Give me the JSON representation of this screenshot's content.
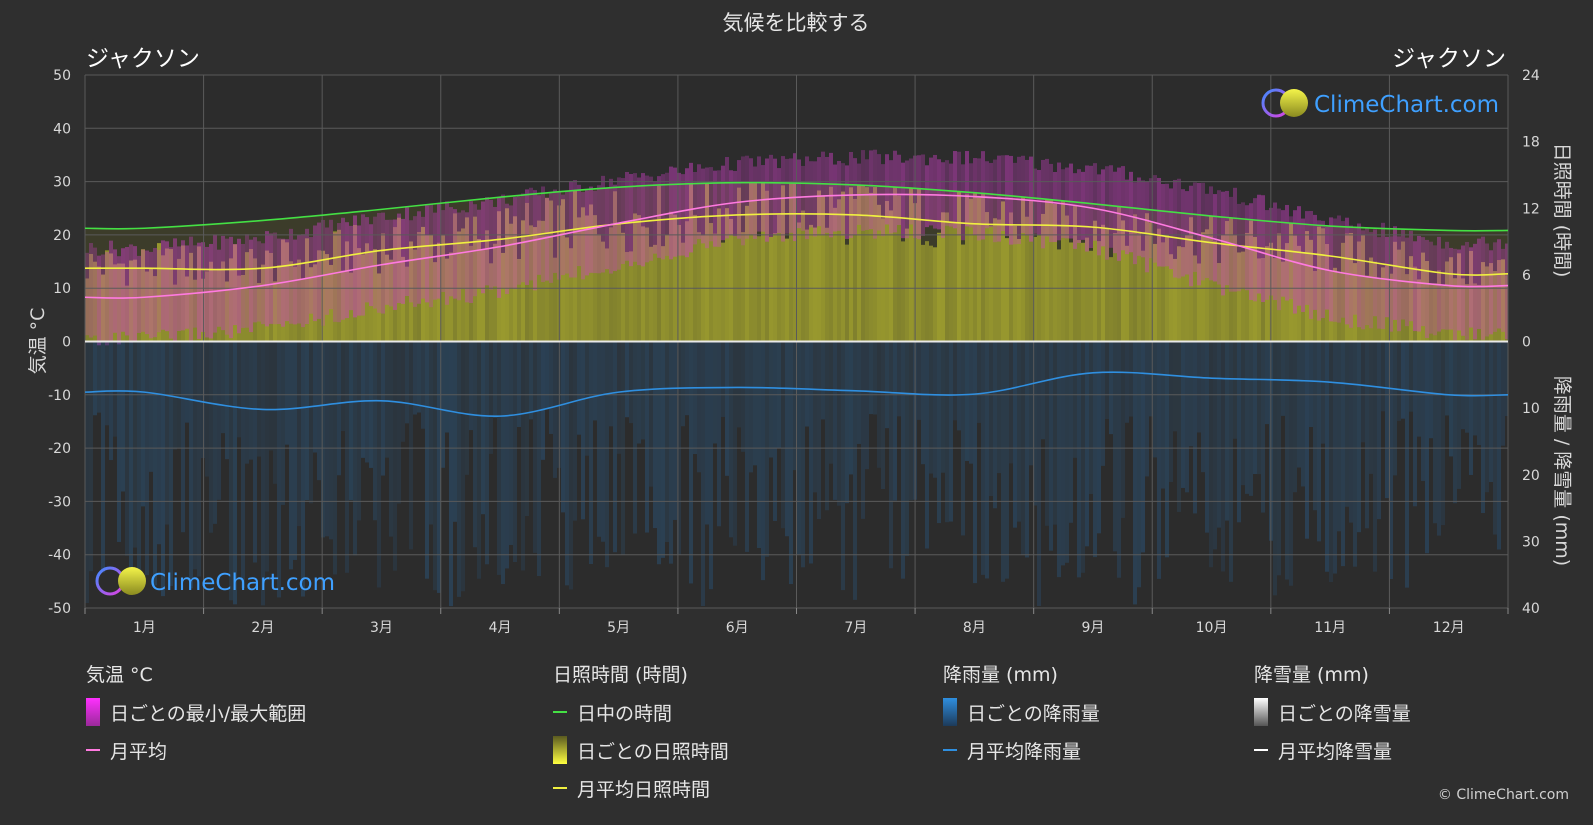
{
  "title": "気候を比較する",
  "left_location": "ジャクソン",
  "right_location": "ジャクソン",
  "watermark": "ClimeChart.com",
  "copyright": "© ClimeChart.com",
  "colors": {
    "daylight": "#44e044",
    "sunshine_avg": "#f0f040",
    "temp_avg": "#ff7ae0",
    "rain_avg": "#2f8fe0",
    "snow_avg": "#ffffff",
    "temp_range": "#d040c8",
    "sunshine_daily": "#b8b830",
    "rain_daily": "#2a6090"
  },
  "legend": {
    "temperature": {
      "header": "気温 °C",
      "range_label": "日ごとの最小/最大範囲",
      "avg_label": "月平均"
    },
    "sunshine": {
      "header": "日照時間 (時間)",
      "daylight_label": "日中の時間",
      "daily_label": "日ごとの日照時間",
      "avg_label": "月平均日照時間"
    },
    "rain": {
      "header": "降雨量 (mm)",
      "daily_label": "日ごとの降雨量",
      "avg_label": "月平均降雨量"
    },
    "snow": {
      "header": "降雪量 (mm)",
      "daily_label": "日ごとの降雪量",
      "avg_label": "月平均降雪量"
    }
  },
  "chart_data": {
    "type": "line",
    "x": [
      "1月",
      "2月",
      "3月",
      "4月",
      "5月",
      "6月",
      "7月",
      "8月",
      "9月",
      "10月",
      "11月",
      "12月"
    ],
    "left_axis": {
      "label": "気温 °C",
      "range": [
        -50,
        50
      ],
      "ticks": [
        -50,
        -40,
        -30,
        -20,
        -10,
        0,
        10,
        20,
        30,
        40,
        50
      ]
    },
    "right_axis_top": {
      "label": "日照時間 (時間)",
      "range": [
        0,
        24
      ],
      "ticks": [
        0,
        6,
        12,
        18,
        24
      ]
    },
    "right_axis_bottom": {
      "label": "降雨量 / 降雪量 (mm)",
      "range": [
        0,
        40
      ],
      "ticks": [
        10,
        20,
        30,
        40
      ]
    },
    "grid": true,
    "series": [
      {
        "name": "日中の時間",
        "axis": "hours",
        "values": [
          10.2,
          10.9,
          11.9,
          13.0,
          13.9,
          14.3,
          14.1,
          13.4,
          12.4,
          11.3,
          10.4,
          10.0
        ]
      },
      {
        "name": "月平均日照時間",
        "axis": "hours",
        "values": [
          6.6,
          6.6,
          8.2,
          9.2,
          10.6,
          11.4,
          11.4,
          10.6,
          10.3,
          8.9,
          7.7,
          6.1
        ]
      },
      {
        "name": "月平均",
        "axis": "temperature",
        "values": [
          8.3,
          10.5,
          14.4,
          17.8,
          22.2,
          26.1,
          27.5,
          27.2,
          25.0,
          19.4,
          13.3,
          10.5
        ]
      },
      {
        "name": "月平均降雨量",
        "axis": "precipitation",
        "values": [
          7.6,
          10.2,
          8.9,
          11.2,
          7.6,
          6.9,
          7.4,
          7.9,
          4.7,
          5.5,
          6.1,
          8.0
        ]
      },
      {
        "name": "日ごとの最小/最大範囲",
        "axis": "temperature",
        "min": [
          2,
          4,
          8,
          11,
          16,
          21,
          22,
          22,
          19,
          12,
          6,
          3
        ],
        "max": [
          16,
          18,
          22,
          25,
          29,
          32,
          33,
          33,
          31,
          27,
          21,
          17
        ]
      }
    ]
  }
}
